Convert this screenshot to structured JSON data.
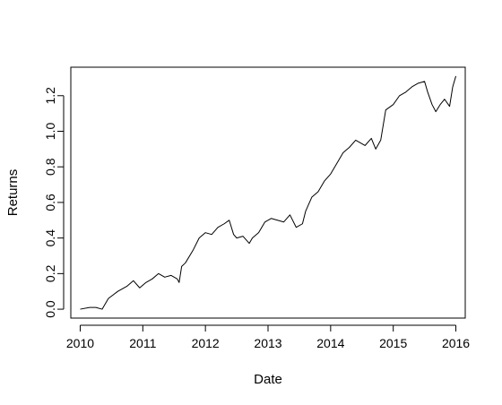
{
  "chart_data": {
    "type": "line",
    "title": "",
    "xlabel": "Date",
    "ylabel": "Returns",
    "xlim": [
      2009.85,
      2016.15
    ],
    "ylim": [
      -0.05,
      1.36
    ],
    "grid": false,
    "x_ticks": [
      {
        "value": 2010,
        "label": "2010"
      },
      {
        "value": 2011,
        "label": "2011"
      },
      {
        "value": 2012,
        "label": "2012"
      },
      {
        "value": 2013,
        "label": "2013"
      },
      {
        "value": 2014,
        "label": "2014"
      },
      {
        "value": 2015,
        "label": "2015"
      },
      {
        "value": 2016,
        "label": "2016"
      }
    ],
    "y_ticks": [
      {
        "value": 0.0,
        "label": "0.0"
      },
      {
        "value": 0.2,
        "label": "0.2"
      },
      {
        "value": 0.4,
        "label": "0.4"
      },
      {
        "value": 0.6,
        "label": "0.6"
      },
      {
        "value": 0.8,
        "label": "0.8"
      },
      {
        "value": 1.0,
        "label": "1.0"
      },
      {
        "value": 1.2,
        "label": "1.2"
      }
    ],
    "series": [
      {
        "color": "#000000",
        "x": [
          2010.0,
          2010.15,
          2010.25,
          2010.35,
          2010.45,
          2010.6,
          2010.75,
          2010.85,
          2010.95,
          2011.05,
          2011.15,
          2011.25,
          2011.35,
          2011.45,
          2011.55,
          2011.58,
          2011.62,
          2011.68,
          2011.8,
          2011.9,
          2012.0,
          2012.1,
          2012.2,
          2012.3,
          2012.38,
          2012.45,
          2012.5,
          2012.6,
          2012.7,
          2012.75,
          2012.85,
          2012.95,
          2013.05,
          2013.15,
          2013.25,
          2013.35,
          2013.45,
          2013.55,
          2013.6,
          2013.7,
          2013.8,
          2013.9,
          2014.0,
          2014.1,
          2014.2,
          2014.3,
          2014.4,
          2014.5,
          2014.55,
          2014.65,
          2014.72,
          2014.8,
          2014.88,
          2015.0,
          2015.1,
          2015.2,
          2015.3,
          2015.4,
          2015.5,
          2015.55,
          2015.62,
          2015.68,
          2015.75,
          2015.82,
          2015.9,
          2015.95,
          2016.0
        ],
        "y": [
          0.0,
          0.01,
          0.01,
          0.0,
          0.06,
          0.1,
          0.13,
          0.16,
          0.12,
          0.15,
          0.17,
          0.2,
          0.18,
          0.19,
          0.17,
          0.15,
          0.24,
          0.26,
          0.33,
          0.4,
          0.43,
          0.42,
          0.46,
          0.48,
          0.5,
          0.42,
          0.4,
          0.41,
          0.37,
          0.4,
          0.43,
          0.49,
          0.51,
          0.5,
          0.49,
          0.53,
          0.46,
          0.48,
          0.55,
          0.63,
          0.66,
          0.72,
          0.76,
          0.82,
          0.88,
          0.91,
          0.95,
          0.93,
          0.92,
          0.96,
          0.9,
          0.95,
          1.12,
          1.15,
          1.2,
          1.22,
          1.25,
          1.27,
          1.28,
          1.22,
          1.15,
          1.11,
          1.15,
          1.18,
          1.14,
          1.25,
          1.31
        ]
      }
    ]
  }
}
